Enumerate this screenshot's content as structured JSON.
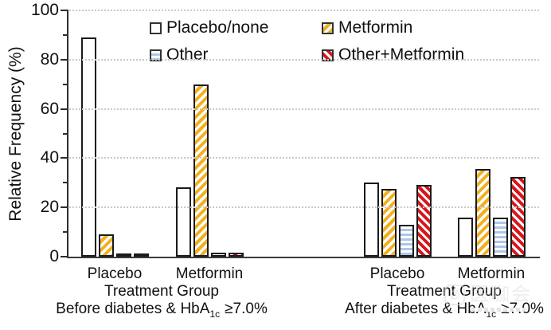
{
  "chart_data": {
    "type": "bar",
    "title": "",
    "ylabel": "Relative Frequency (%)",
    "ylim": [
      0,
      100
    ],
    "yticks": [
      0,
      20,
      40,
      60,
      80,
      100
    ],
    "minor_yticks": [
      10,
      30,
      50,
      70,
      90
    ],
    "grid": "horizontal dotted gridlines at major ticks",
    "legend_position": "top-inside, two columns",
    "groups": [
      {
        "label": "Placebo",
        "panel": 0
      },
      {
        "label": "Metformin",
        "panel": 0
      },
      {
        "label": "Placebo",
        "panel": 1
      },
      {
        "label": "Metformin",
        "panel": 1
      }
    ],
    "panels": [
      {
        "xlabel": "Treatment Group",
        "sub_prefix": "Before diabetes & HbA",
        "sub_sub": "1c",
        "sub_suffix": "≥7.0%"
      },
      {
        "xlabel": "Treatment Group",
        "sub_prefix": "After diabetes & HbA",
        "sub_sub": "1c",
        "sub_suffix": "≥7.0%"
      }
    ],
    "series": [
      {
        "name": "Placebo/none",
        "pattern": "plain",
        "color": "#ffffff",
        "values": [
          89,
          28,
          30,
          16
        ]
      },
      {
        "name": "Metformin",
        "pattern": "gold",
        "color": "#f2b01e",
        "values": [
          9,
          70,
          27.5,
          35.5
        ]
      },
      {
        "name": "Other",
        "pattern": "blue",
        "color": "#aec7e8",
        "values": [
          1,
          1.5,
          13,
          16
        ]
      },
      {
        "name": "Other+Metformin",
        "pattern": "red",
        "color": "#d6161b",
        "values": [
          1,
          1.5,
          29,
          32.5
        ]
      }
    ],
    "bar_border_color": "#1a1a1a"
  },
  "watermark": {
    "text": "医咖会"
  }
}
